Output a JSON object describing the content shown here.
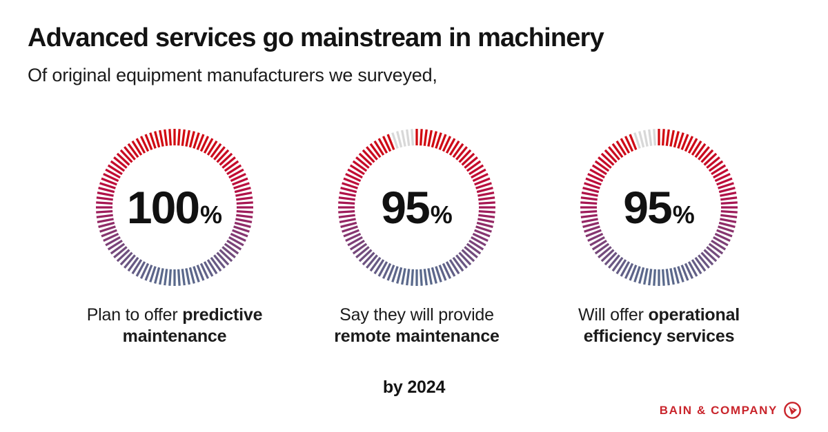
{
  "page": {
    "title": "Advanced services go mainstream in machinery",
    "subtitle": "Of original equipment manufacturers we surveyed,",
    "footnote": "by 2024",
    "brand": {
      "name": "BAIN & COMPANY",
      "color": "#c9242b"
    }
  },
  "chart_data": {
    "type": "radial-tick-gauges",
    "unit": "%",
    "tick_count": 100,
    "start_angle": "top",
    "direction": "clockwise",
    "gradient_stops": [
      {
        "t": 0.0,
        "color": "#d10a10"
      },
      {
        "t": 0.3,
        "color": "#be0c38"
      },
      {
        "t": 0.5,
        "color": "#a21857"
      },
      {
        "t": 0.73,
        "color": "#7f3d76"
      },
      {
        "t": 1.0,
        "color": "#5a6a8c"
      }
    ],
    "remainder_color": "#d8d8d8",
    "gauges": [
      {
        "value": 100,
        "caption_lines": [
          [
            {
              "text": "Plan to offer ",
              "bold": false
            },
            {
              "text": "predictive",
              "bold": true
            }
          ],
          [
            {
              "text": "maintenance",
              "bold": true
            }
          ]
        ]
      },
      {
        "value": 95,
        "caption_lines": [
          [
            {
              "text": "Say they will provide",
              "bold": false
            }
          ],
          [
            {
              "text": "remote maintenance",
              "bold": true
            }
          ]
        ]
      },
      {
        "value": 95,
        "caption_lines": [
          [
            {
              "text": "Will offer ",
              "bold": false
            },
            {
              "text": "operational",
              "bold": true
            }
          ],
          [
            {
              "text": "efficiency services",
              "bold": true
            }
          ]
        ]
      }
    ]
  }
}
